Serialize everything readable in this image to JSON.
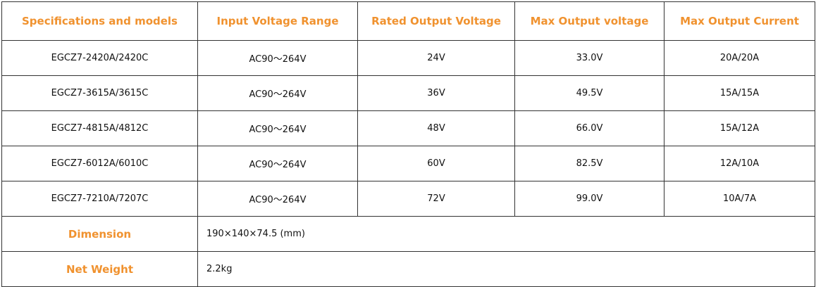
{
  "table": {
    "header": [
      "Specifications and models",
      "Input Voltage Range",
      "Rated Output Voltage",
      "Max Output voltage",
      "Max Output Current"
    ],
    "rows": [
      [
        "EGCZ7-2420A/2420C",
        "AC90～264V",
        "24V",
        "33.0V",
        "20A/20A"
      ],
      [
        "EGCZ7-3615A/3615C",
        "AC90～264V",
        "36V",
        "49.5V",
        "15A/15A"
      ],
      [
        "EGCZ7-4815A/4812C",
        "AC90～264V",
        "48V",
        "66.0V",
        "15A/12A"
      ],
      [
        "EGCZ7-6012A/6010C",
        "AC90～264V",
        "60V",
        "82.5V",
        "12A/10A"
      ],
      [
        "EGCZ7-7210A/7207C",
        "AC90～264V",
        "72V",
        "99.0V",
        "10A/7A"
      ]
    ],
    "footer_rows": [
      {
        "label": "Dimension",
        "value": "190×140×74.5 (mm)"
      },
      {
        "label": "Net Weight",
        "value": "2.2kg"
      }
    ]
  }
}
